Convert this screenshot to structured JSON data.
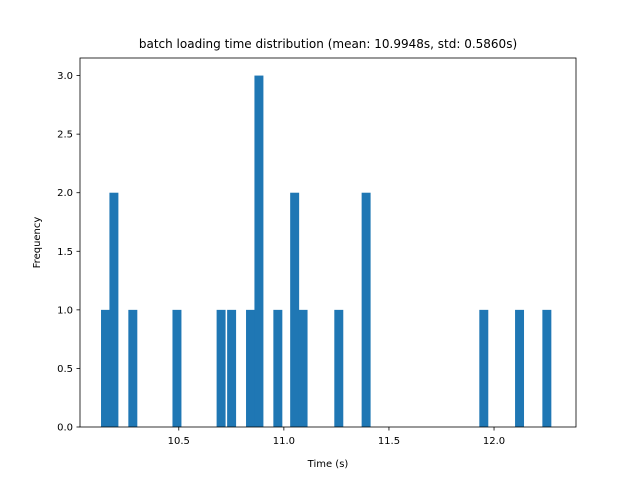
{
  "chart_data": {
    "type": "bar",
    "title": "batch loading time distribution (mean: 10.9948s, std: 0.5860s)",
    "xlabel": "Time (s)",
    "ylabel": "Frequency",
    "xlim": [
      10.03,
      12.39
    ],
    "ylim": [
      0,
      3.15
    ],
    "bin_width": 0.0427,
    "bins": [
      {
        "left": 10.13,
        "count": 1
      },
      {
        "left": 10.17,
        "count": 2
      },
      {
        "left": 10.26,
        "count": 1
      },
      {
        "left": 10.47,
        "count": 1
      },
      {
        "left": 10.68,
        "count": 1
      },
      {
        "left": 10.73,
        "count": 1
      },
      {
        "left": 10.82,
        "count": 1
      },
      {
        "left": 10.86,
        "count": 3
      },
      {
        "left": 10.95,
        "count": 1
      },
      {
        "left": 11.03,
        "count": 2
      },
      {
        "left": 11.07,
        "count": 1
      },
      {
        "left": 11.24,
        "count": 1
      },
      {
        "left": 11.37,
        "count": 2
      },
      {
        "left": 11.93,
        "count": 1
      },
      {
        "left": 12.1,
        "count": 1
      },
      {
        "left": 12.23,
        "count": 1
      }
    ],
    "x_ticks": [
      {
        "value": 10.5,
        "label": "10.5"
      },
      {
        "value": 11.0,
        "label": "11.0"
      },
      {
        "value": 11.5,
        "label": "11.5"
      },
      {
        "value": 12.0,
        "label": "12.0"
      }
    ],
    "y_ticks": [
      {
        "value": 0.0,
        "label": "0.0"
      },
      {
        "value": 0.5,
        "label": "0.5"
      },
      {
        "value": 1.0,
        "label": "1.0"
      },
      {
        "value": 1.5,
        "label": "1.5"
      },
      {
        "value": 2.0,
        "label": "2.0"
      },
      {
        "value": 2.5,
        "label": "2.5"
      },
      {
        "value": 3.0,
        "label": "3.0"
      }
    ],
    "bar_color": "#1f77b4",
    "grid": false,
    "legend": "none"
  }
}
